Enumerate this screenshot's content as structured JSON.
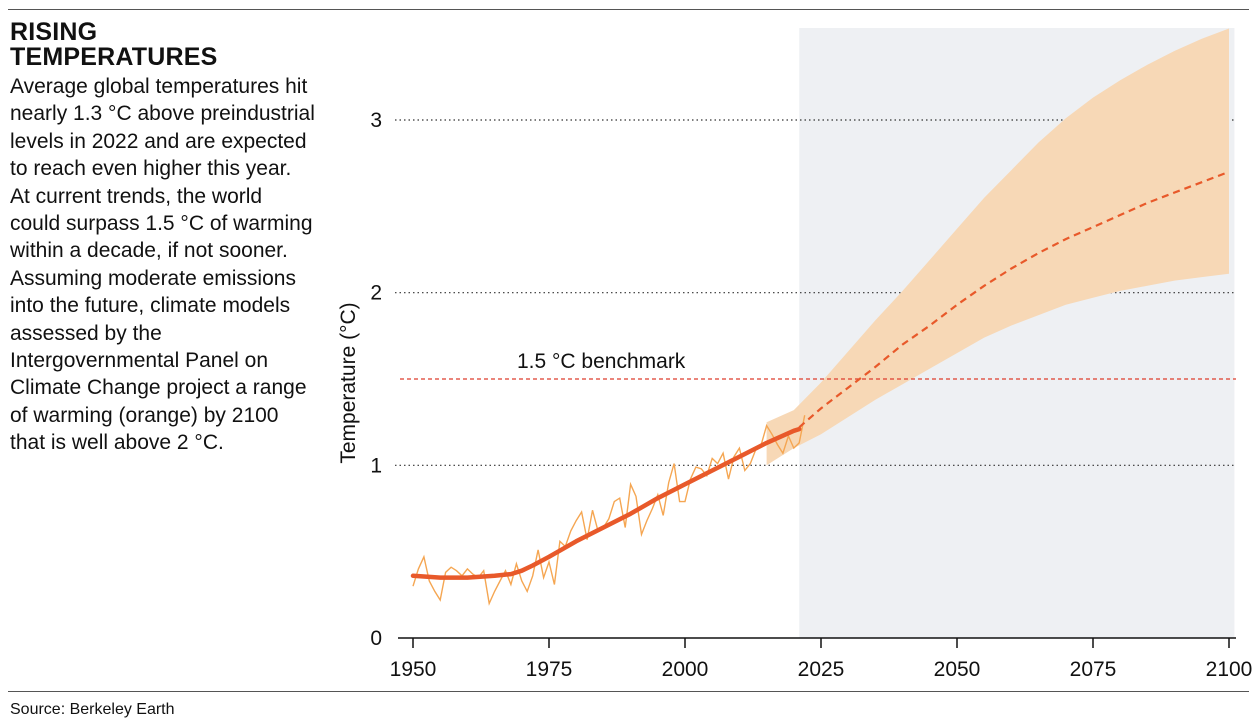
{
  "header": {
    "title": "RISING TEMPERATURES",
    "description": "Average global temperatures hit nearly 1.3 °C above preindustrial levels in 2022 and are expected to reach even higher this year. At current trends, the world could surpass 1.5 °C of warming within a decade, if not sooner. Assuming moderate emissions into the future, climate models assessed by the Intergovernmental Panel on Climate Change project a range of warming (orange) by 2100 that is well above 2 °C."
  },
  "footer": {
    "source": "Source: Berkeley Earth"
  },
  "colors": {
    "annual": "#f5a652",
    "smoothed": "#e8592a",
    "projection_band": "#f7d8b6",
    "projection_shade": "#eef0f3",
    "benchmark": "#dd3c2c",
    "grid": "#333333",
    "axis": "#111111"
  },
  "chart_data": {
    "type": "line",
    "ylabel": "Temperature (°C)",
    "xlabel": "",
    "xlim": [
      1948,
      2101
    ],
    "ylim": [
      0,
      3.5
    ],
    "x_ticks": [
      1950,
      1975,
      2000,
      2025,
      2050,
      2075,
      2100
    ],
    "y_ticks": [
      0,
      1,
      2,
      3
    ],
    "y_gridlines": [
      1,
      2,
      3
    ],
    "shaded_region": {
      "x_start": 2021,
      "x_end": 2101
    },
    "benchmark": {
      "label": "1.5 °C benchmark",
      "value": 1.5
    },
    "series": [
      {
        "style": "annual-thin",
        "x": [
          1950,
          1951,
          1952,
          1953,
          1954,
          1955,
          1956,
          1957,
          1958,
          1959,
          1960,
          1961,
          1962,
          1963,
          1964,
          1965,
          1966,
          1967,
          1968,
          1969,
          1970,
          1971,
          1972,
          1973,
          1974,
          1975,
          1976,
          1977,
          1978,
          1979,
          1980,
          1981,
          1982,
          1983,
          1984,
          1985,
          1986,
          1987,
          1988,
          1989,
          1990,
          1991,
          1992,
          1993,
          1994,
          1995,
          1996,
          1997,
          1998,
          1999,
          2000,
          2001,
          2002,
          2003,
          2004,
          2005,
          2006,
          2007,
          2008,
          2009,
          2010,
          2011,
          2012,
          2013,
          2014,
          2015,
          2016,
          2017,
          2018,
          2019,
          2020,
          2021,
          2022
        ],
        "y": [
          0.3,
          0.4,
          0.47,
          0.33,
          0.27,
          0.22,
          0.38,
          0.41,
          0.39,
          0.36,
          0.4,
          0.37,
          0.35,
          0.39,
          0.2,
          0.27,
          0.33,
          0.39,
          0.31,
          0.43,
          0.33,
          0.27,
          0.36,
          0.51,
          0.35,
          0.44,
          0.31,
          0.56,
          0.53,
          0.62,
          0.68,
          0.73,
          0.57,
          0.74,
          0.62,
          0.64,
          0.69,
          0.79,
          0.81,
          0.64,
          0.89,
          0.82,
          0.6,
          0.68,
          0.75,
          0.83,
          0.71,
          0.9,
          1.01,
          0.79,
          0.79,
          0.92,
          0.99,
          0.98,
          0.94,
          1.04,
          1.01,
          1.07,
          0.92,
          1.05,
          1.1,
          0.97,
          1.01,
          1.09,
          1.12,
          1.23,
          1.18,
          1.12,
          1.07,
          1.17,
          1.1,
          1.13,
          1.29
        ]
      },
      {
        "style": "smoothed",
        "x": [
          1950,
          1955,
          1960,
          1965,
          1968,
          1970,
          1972,
          1975,
          1980,
          1985,
          1990,
          1995,
          2000,
          2005,
          2010,
          2015,
          2020,
          2021
        ],
        "y": [
          0.36,
          0.35,
          0.35,
          0.36,
          0.37,
          0.39,
          0.42,
          0.47,
          0.56,
          0.64,
          0.72,
          0.81,
          0.89,
          0.97,
          1.05,
          1.13,
          1.2,
          1.21
        ]
      },
      {
        "style": "projection-dashed",
        "x": [
          2021,
          2025,
          2030,
          2035,
          2040,
          2045,
          2050,
          2055,
          2060,
          2065,
          2070,
          2075,
          2080,
          2085,
          2090,
          2095,
          2100
        ],
        "y": [
          1.22,
          1.33,
          1.45,
          1.57,
          1.7,
          1.81,
          1.93,
          2.04,
          2.14,
          2.23,
          2.31,
          2.38,
          2.45,
          2.52,
          2.58,
          2.64,
          2.7
        ]
      },
      {
        "style": "projection-range",
        "x": [
          2015,
          2020,
          2025,
          2030,
          2035,
          2040,
          2045,
          2050,
          2055,
          2060,
          2065,
          2070,
          2075,
          2080,
          2085,
          2090,
          2095,
          2100
        ],
        "upper": [
          1.25,
          1.32,
          1.48,
          1.66,
          1.84,
          2.01,
          2.19,
          2.37,
          2.55,
          2.71,
          2.87,
          3.01,
          3.13,
          3.23,
          3.32,
          3.4,
          3.47,
          3.53
        ],
        "lower": [
          1.0,
          1.1,
          1.18,
          1.28,
          1.38,
          1.47,
          1.56,
          1.65,
          1.74,
          1.81,
          1.87,
          1.93,
          1.97,
          2.01,
          2.04,
          2.07,
          2.09,
          2.11
        ]
      }
    ]
  }
}
